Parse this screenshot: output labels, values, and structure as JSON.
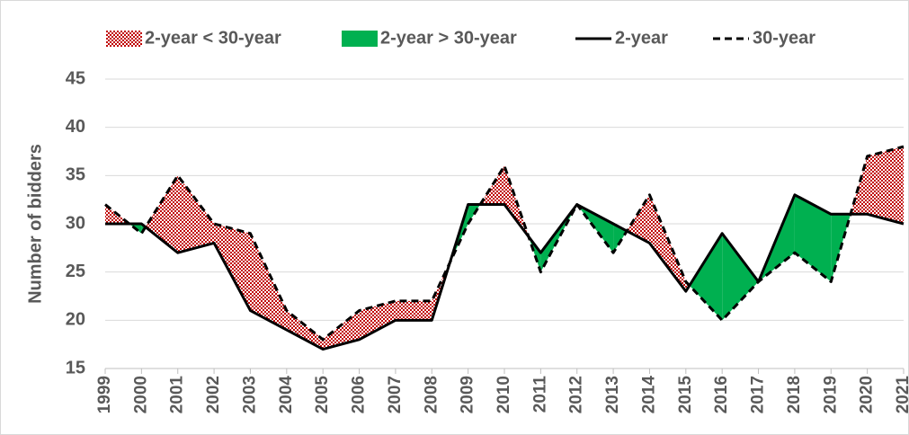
{
  "chart_data": {
    "type": "line",
    "y_label": "Number of bidders",
    "categories": [
      "1999",
      "2000",
      "2001",
      "2002",
      "2003",
      "2004",
      "2005",
      "2006",
      "2007",
      "2008",
      "2009",
      "2010",
      "2011",
      "2012",
      "2013",
      "2014",
      "2015",
      "2016",
      "2017",
      "2018",
      "2019",
      "2020",
      "2021"
    ],
    "series": [
      {
        "name": "2-year",
        "color": "#000000",
        "line_style": "solid",
        "values": [
          30,
          30,
          27,
          28,
          21,
          19,
          17,
          18,
          20,
          20,
          32,
          32,
          27,
          32,
          30,
          28,
          23,
          29,
          24,
          33,
          31,
          31,
          30
        ]
      },
      {
        "name": "30-year",
        "color": "#000000",
        "line_style": "dashed",
        "values": [
          32,
          29,
          35,
          30,
          29,
          21,
          18,
          21,
          22,
          22,
          30,
          36,
          25,
          32,
          27,
          33,
          24,
          20,
          24,
          27,
          24,
          37,
          38
        ]
      }
    ],
    "fills": [
      {
        "name": "2-year < 30-year",
        "color": "#c00000"
      },
      {
        "name": "2-year > 30-year",
        "color": "#00b050"
      }
    ],
    "ylim": [
      15,
      45
    ],
    "yticks": [
      15,
      20,
      25,
      30,
      35,
      40,
      45
    ],
    "grid": true
  }
}
